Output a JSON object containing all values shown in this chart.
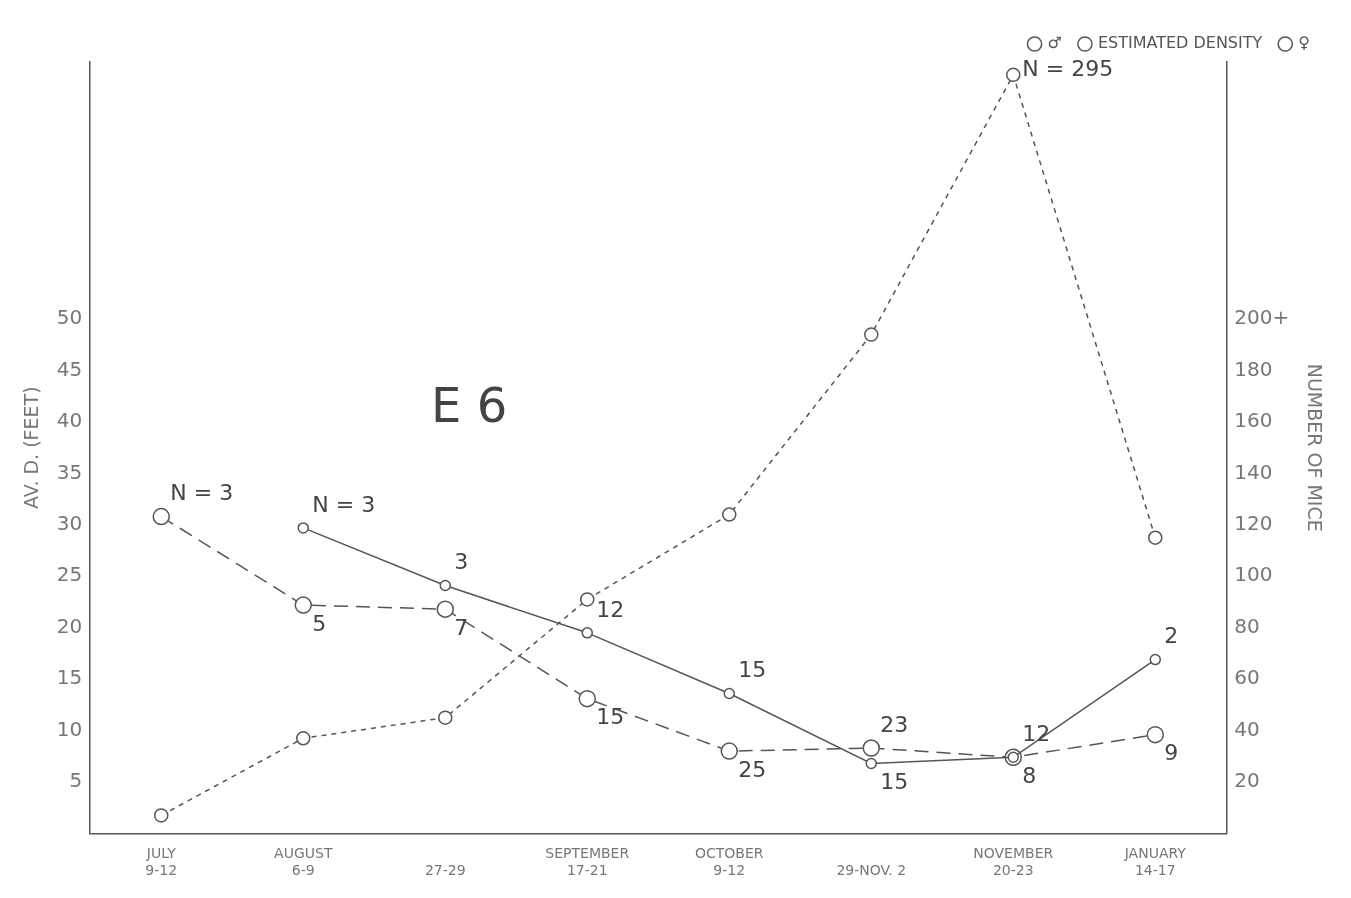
{
  "chart_data": {
    "type": "line",
    "title": "E 6",
    "ylabel": "AV. D. (FEET)",
    "y2label": "NUMBER OF MICE",
    "categories": [
      "JULY\n9-12",
      "AUGUST\n6-9",
      "27-29",
      "SEPTEMBER\n17-21",
      "OCTOBER\n9-12",
      "29-NOV. 2",
      "NOVEMBER\n20-23",
      "JANUARY\n14-17"
    ],
    "ylim": [
      0,
      75
    ],
    "yticks": [
      5,
      10,
      15,
      20,
      25,
      30,
      35,
      40,
      45,
      50
    ],
    "y2lim": [
      0,
      300
    ],
    "y2ticks": [
      20,
      40,
      60,
      80,
      100,
      120,
      140,
      160,
      180,
      {
        "value": 200,
        "label": "200+"
      }
    ],
    "series": [
      {
        "name": "♂",
        "color": "#555555",
        "line_style": "solid",
        "values": [
          null,
          29.7,
          24.1,
          19.5,
          13.6,
          6.8,
          7.4,
          16.9
        ]
      },
      {
        "name": "ESTIMATED DENSITY",
        "color": "#555555",
        "line_style": "dotted",
        "axis": "y2",
        "values": [
          7,
          37,
          45,
          91,
          124,
          194,
          295,
          115
        ]
      },
      {
        "name": "♀",
        "color": "#555555",
        "line_style": "dashed",
        "values": [
          30.8,
          22.2,
          21.8,
          13.1,
          8.0,
          8.3,
          7.4,
          9.6
        ]
      }
    ],
    "annotations": [
      {
        "text": "N = 3",
        "x": "JULY\n9-12",
        "y": 30.8
      },
      {
        "text": "N = 3",
        "x": "AUGUST\n6-9",
        "y": 29.7
      },
      {
        "text": "5",
        "x": "AUGUST\n6-9",
        "y": 22.2
      },
      {
        "text": "3",
        "x": "27-29",
        "y": 24.1
      },
      {
        "text": "7",
        "x": "27-29",
        "y": 21.8
      },
      {
        "text": "12",
        "x": "SEPTEMBER\n17-21",
        "y": 19.5
      },
      {
        "text": "15",
        "x": "SEPTEMBER\n17-21",
        "y": 13.1
      },
      {
        "text": "15",
        "x": "OCTOBER\n9-12",
        "y": 13.6
      },
      {
        "text": "25",
        "x": "OCTOBER\n9-12",
        "y": 8.0
      },
      {
        "text": "23",
        "x": "29-NOV. 2",
        "y": 8.3
      },
      {
        "text": "15",
        "x": "29-NOV. 2",
        "y": 6.8
      },
      {
        "text": "12",
        "x": "NOVEMBER\n20-23",
        "y": 7.4
      },
      {
        "text": "8",
        "x": "NOVEMBER\n20-23",
        "y": 7.4
      },
      {
        "text": "2",
        "x": "JANUARY\n14-17",
        "y": 16.9
      },
      {
        "text": "9",
        "x": "JANUARY\n14-17",
        "y": 9.6
      },
      {
        "text": "N = 295",
        "x": "NOVEMBER\n20-23"
      }
    ],
    "marker": "circle",
    "grid": false,
    "legend": "top right"
  }
}
